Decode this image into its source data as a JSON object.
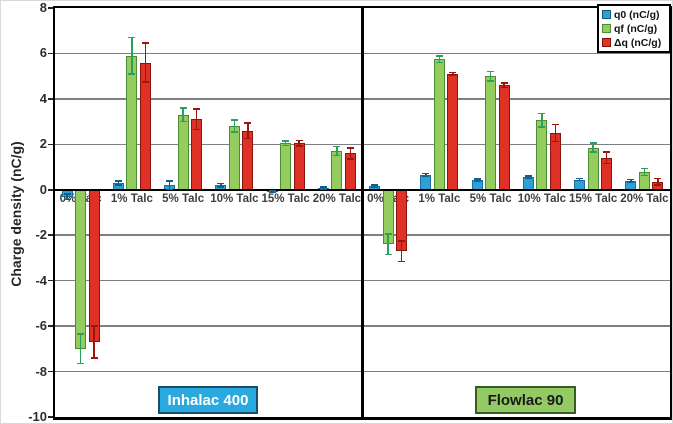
{
  "chart_data": {
    "type": "bar",
    "title": "",
    "ylabel": "Charge density (nC/g)",
    "xlabel": "",
    "ylim": [
      -10,
      8
    ],
    "ytick_labels": [
      "8",
      "6",
      "4",
      "2",
      "0",
      "-2",
      "-4",
      "-6",
      "-8",
      "-10"
    ],
    "ytick_values": [
      8,
      6,
      4,
      2,
      0,
      -2,
      -4,
      -6,
      -8,
      -10
    ],
    "grid": true,
    "legend_position": "top-right",
    "categories": [
      "0% Talc",
      "1% Talc",
      "5% Talc",
      "10% Talc",
      "15% Talc",
      "20% Talc"
    ],
    "legend": [
      {
        "label": "q0 (nC/g)",
        "fill": "#2CA0D7",
        "border": "#17597C"
      },
      {
        "label": "qf (nC/g)",
        "fill": "#95CC5E",
        "border": "#4E8B33"
      },
      {
        "label": "Δq (nC/g)",
        "fill": "#E03127",
        "border": "#7E120A"
      }
    ],
    "series_styles": [
      {
        "name": "q0 (nC/g)",
        "fill": "#2CA0D7",
        "border": "#1A6E9E",
        "error_color": "#135D86"
      },
      {
        "name": "qf (nC/g)",
        "fill": "#95CC5E",
        "border": "#4E8B33",
        "error_color": "#2AA05F"
      },
      {
        "name": "Δq (nC/g)",
        "fill": "#E03127",
        "border": "#8A150C",
        "error_color": "#9B170D"
      }
    ],
    "panels": [
      {
        "name": "Inhalac 400",
        "label_bg": "#29A9E0",
        "label_border": "#1C4F66",
        "label_text_color": "#FFFFFF",
        "series": [
          {
            "name": "q0 (nC/g)",
            "values": [
              -0.3,
              0.3,
              0.2,
              0.2,
              -0.08,
              0.07
            ],
            "errors": [
              0.12,
              0.08,
              0.18,
              0.07,
              0.04,
              0.05
            ]
          },
          {
            "name": "qf (nC/g)",
            "values": [
              -7.0,
              5.9,
              3.3,
              2.8,
              2.05,
              1.7
            ],
            "errors": [
              0.65,
              0.8,
              0.3,
              0.27,
              0.1,
              0.2
            ]
          },
          {
            "name": "Δq (nC/g)",
            "values": [
              -6.7,
              5.6,
              3.1,
              2.6,
              2.05,
              1.6
            ],
            "errors": [
              0.7,
              0.85,
              0.45,
              0.35,
              0.12,
              0.25
            ]
          }
        ]
      },
      {
        "name": "Flowlac 90",
        "label_bg": "#93CA63",
        "label_border": "#365B23",
        "label_text_color": "#1A1A1A",
        "series": [
          {
            "name": "q0 (nC/g)",
            "values": [
              0.15,
              0.65,
              0.42,
              0.55,
              0.45,
              0.4
            ],
            "errors": [
              0.05,
              0.06,
              0.05,
              0.06,
              0.05,
              0.05
            ]
          },
          {
            "name": "qf (nC/g)",
            "values": [
              -2.4,
              5.75,
              5.0,
              3.05,
              1.85,
              0.78
            ],
            "errors": [
              0.45,
              0.15,
              0.2,
              0.3,
              0.2,
              0.15
            ]
          },
          {
            "name": "Δq (nC/g)",
            "values": [
              -2.7,
              5.1,
              4.6,
              2.5,
              1.4,
              0.35
            ],
            "errors": [
              0.45,
              0.07,
              0.1,
              0.38,
              0.25,
              0.15
            ]
          }
        ]
      }
    ]
  },
  "colors": {
    "gridline": "#7F7F7F",
    "axis": "#000000",
    "tick_text": "#2E2E2E",
    "category_text": "#3F3F3F",
    "background": "#FFFFFF"
  }
}
